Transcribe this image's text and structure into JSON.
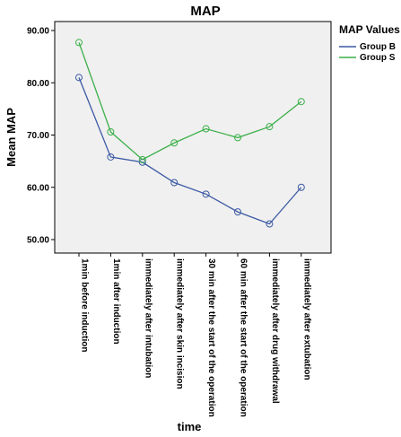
{
  "chart_data": {
    "type": "line",
    "title": "MAP",
    "xlabel": "time",
    "ylabel": "Mean MAP",
    "ylim": [
      48,
      93
    ],
    "yticks": [
      "50.00",
      "60.00",
      "70.00",
      "80.00",
      "90.00"
    ],
    "ytick_values": [
      50,
      60,
      70,
      80,
      90
    ],
    "categories": [
      "1min before induction",
      "1min after induction",
      "immediately after intubation",
      "immediately after skin incision",
      "30 min after the start of the operation",
      "60 min after the start of the operation",
      "immediately after drug withdrawal",
      "immediately after extubation"
    ],
    "legend_title": "MAP Values",
    "legend_position": "top-right",
    "series": [
      {
        "name": "Group B",
        "color": "#3b59a3",
        "values": [
          81.0,
          65.8,
          64.8,
          60.9,
          58.7,
          55.3,
          53.0,
          60.0
        ]
      },
      {
        "name": "Group S",
        "color": "#3cb04a",
        "values": [
          87.7,
          70.6,
          65.3,
          68.5,
          71.2,
          69.5,
          71.6,
          76.4
        ]
      }
    ],
    "plot_background": "#f0f0f0",
    "grid": false
  }
}
